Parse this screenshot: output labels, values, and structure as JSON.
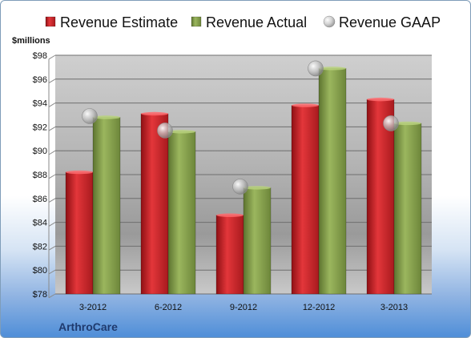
{
  "chart_data": {
    "type": "bar",
    "categories": [
      "3-2012",
      "6-2012",
      "9-2012",
      "12-2012",
      "3-2013"
    ],
    "series": [
      {
        "name": "Revenue Estimate",
        "kind": "bar",
        "color": "#d9262b",
        "values": [
          88.2,
          93.1,
          84.6,
          93.8,
          94.3
        ]
      },
      {
        "name": "Revenue Actual",
        "kind": "bar",
        "color": "#8fa851",
        "values": [
          92.8,
          91.6,
          86.9,
          96.9,
          92.3
        ]
      },
      {
        "name": "Revenue GAAP",
        "kind": "marker",
        "color": "#c3c3c3",
        "values": [
          92.9,
          91.7,
          87.0,
          96.9,
          92.3
        ]
      }
    ],
    "ylabel": "$millions",
    "ylim": [
      78,
      98
    ],
    "yticks": [
      "$78",
      "$80",
      "$82",
      "$84",
      "$86",
      "$88",
      "$90",
      "$92",
      "$94",
      "$96",
      "$98"
    ],
    "grid": true,
    "legend": "top",
    "footer_label": "ArthroCare"
  }
}
